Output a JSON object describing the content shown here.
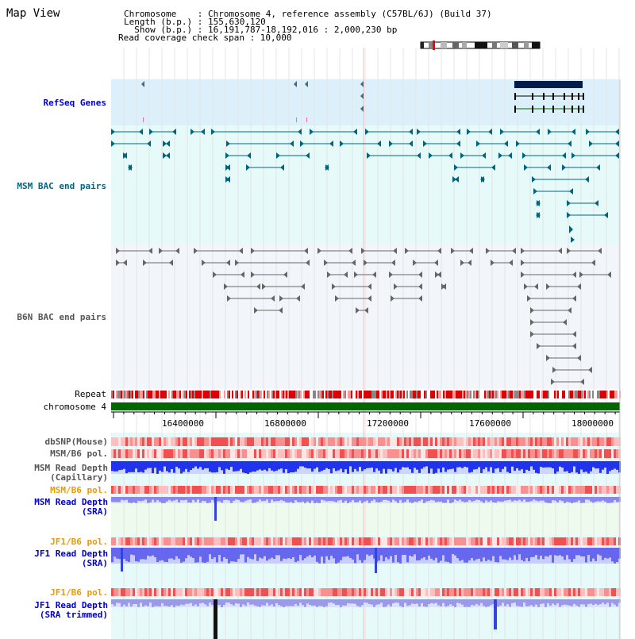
{
  "header": {
    "title": "Map View",
    "chromosome_line": "Chromosome    : Chromosome 4, reference assembly (C57BL/6J) (Build 37)",
    "length_line": "Length (b.p.) : 155,630,120",
    "show_line": "  Show (b.p.) : 16,191,787-18,192,016 : 2,000,230 bp",
    "coverage_line": "Read coverage check span : 10,000"
  },
  "tracks": {
    "refseq": "RefSeq Genes",
    "msm_bac": "MSM BAC end pairs",
    "b6n_bac": "B6N BAC end pairs",
    "repeat": "Repeat",
    "chromosome": "chromosome 4",
    "dbsnp": "dbSNP(Mouse)",
    "msm_pol": "MSM/B6 pol.",
    "msm_depth_cap_1": "MSM Read Depth",
    "msm_depth_cap_2": "(Capillary)",
    "msm_pol_2": "MSM/B6 pol.",
    "msm_depth_sra_1": "MSM Read Depth",
    "msm_depth_sra_2": "(SRA)",
    "jf1_pol": "JF1/B6 pol.",
    "jf1_depth_sra_1": "JF1 Read Depth",
    "jf1_depth_sra_2": "(SRA)",
    "jf1_pol_2": "JF1/B6 pol.",
    "jf1_depth_trim_1": "JF1 Read Depth",
    "jf1_depth_trim_2": "(SRA trimmed)"
  },
  "ruler": {
    "ticks": [
      "16400000",
      "16800000",
      "17200000",
      "17600000",
      "18000000"
    ]
  },
  "colors": {
    "label_blue": "#0000cc",
    "label_teal": "#006680",
    "label_gray": "#555555",
    "label_orange": "#ee9900",
    "refseq_bg": "#dbf0fa",
    "msm_bg": "#e6fafa",
    "b6n_bg": "#f2f6fb",
    "chromosome_green": "#006600"
  }
}
